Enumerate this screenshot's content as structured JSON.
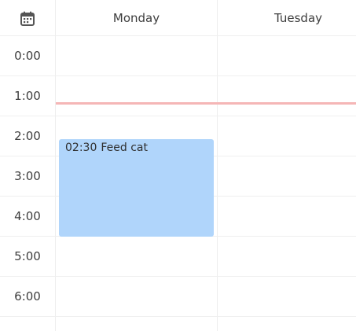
{
  "header": {
    "calendar_icon": "calendar-icon",
    "days": [
      {
        "label": "Monday"
      },
      {
        "label": "Tuesday"
      }
    ]
  },
  "time_slots": [
    "0:00",
    "1:00",
    "2:00",
    "3:00",
    "4:00",
    "5:00",
    "6:00"
  ],
  "now_indicator": {
    "color": "#f5b6b6"
  },
  "events": [
    {
      "day": "Monday",
      "time": "02:30",
      "title": "Feed cat",
      "color": "#b0d5fb"
    }
  ]
}
